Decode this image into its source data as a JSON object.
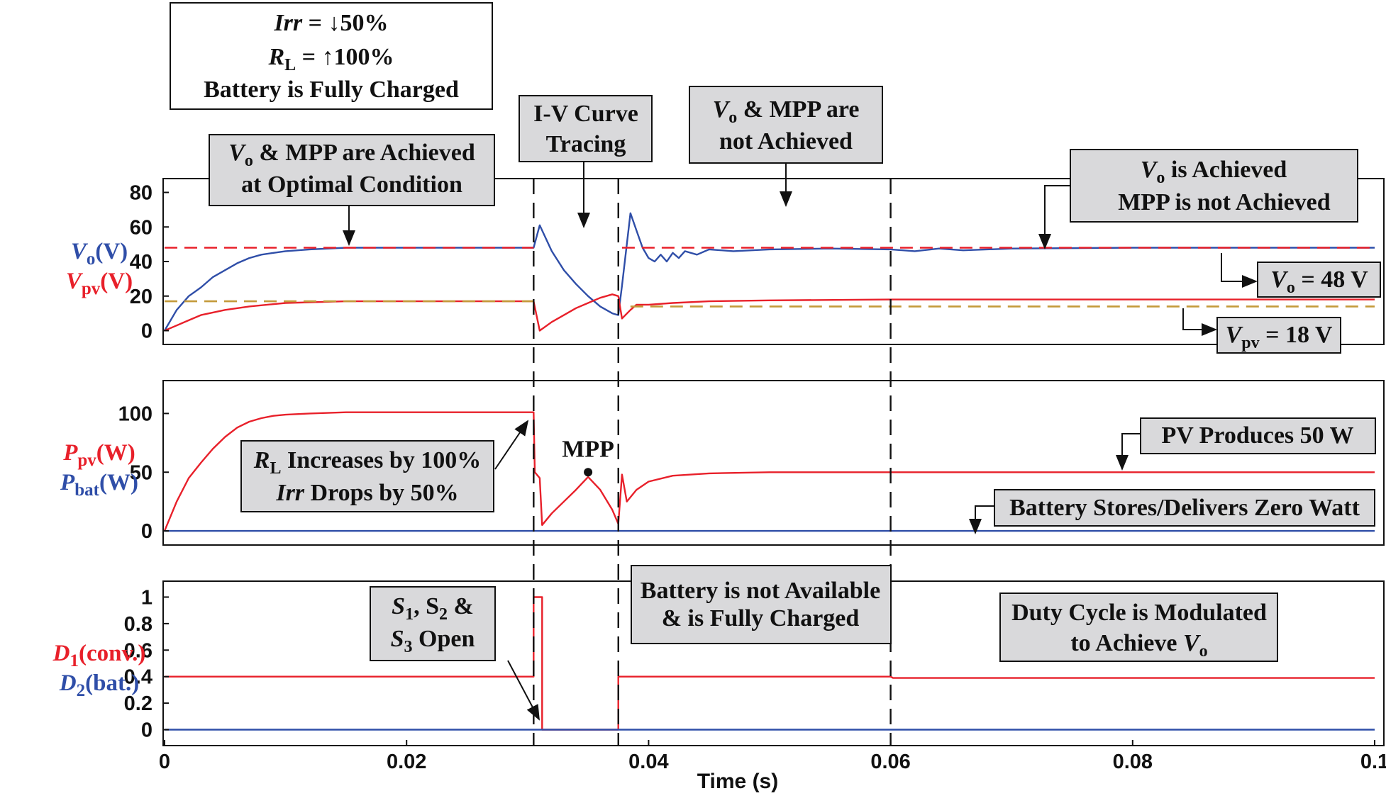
{
  "colors": {
    "red": "#e8202a",
    "blue": "#2f4ea8",
    "gold": "#c49a3a",
    "box_fill": "#d9d9db",
    "axis": "#111111"
  },
  "chart_data": [
    {
      "type": "line",
      "panel": "top",
      "ylabels": [
        {
          "sym": "V",
          "sub": "o",
          "unit": "(V)",
          "color": "blue"
        },
        {
          "sym": "V",
          "sub": "pv",
          "unit": "(V)",
          "color": "red"
        }
      ],
      "xlim": [
        0,
        0.1
      ],
      "ylim": [
        -8,
        88
      ],
      "yticks": [
        0,
        20,
        40,
        60,
        80
      ],
      "series": [
        {
          "color": "blue",
          "dash": false,
          "points": [
            [
              0,
              0
            ],
            [
              0.001,
              12
            ],
            [
              0.002,
              20
            ],
            [
              0.003,
              25
            ],
            [
              0.004,
              31
            ],
            [
              0.005,
              35
            ],
            [
              0.006,
              39
            ],
            [
              0.007,
              42
            ],
            [
              0.008,
              44
            ],
            [
              0.009,
              45
            ],
            [
              0.01,
              46
            ],
            [
              0.012,
              47
            ],
            [
              0.015,
              48
            ],
            [
              0.0305,
              48
            ],
            [
              0.031,
              61
            ],
            [
              0.032,
              46
            ],
            [
              0.033,
              35
            ],
            [
              0.034,
              27
            ],
            [
              0.035,
              20
            ],
            [
              0.036,
              14
            ],
            [
              0.037,
              10
            ],
            [
              0.0375,
              9
            ],
            [
              0.0378,
              26
            ],
            [
              0.0385,
              68
            ],
            [
              0.039,
              58
            ],
            [
              0.0395,
              48
            ],
            [
              0.04,
              42
            ],
            [
              0.0405,
              40
            ],
            [
              0.041,
              44
            ],
            [
              0.0415,
              40
            ],
            [
              0.042,
              45
            ],
            [
              0.0425,
              42
            ],
            [
              0.043,
              46
            ],
            [
              0.044,
              44
            ],
            [
              0.045,
              47
            ],
            [
              0.047,
              46
            ],
            [
              0.05,
              47
            ],
            [
              0.055,
              47.5
            ],
            [
              0.06,
              47
            ],
            [
              0.062,
              46
            ],
            [
              0.064,
              47.5
            ],
            [
              0.066,
              46.5
            ],
            [
              0.07,
              47.5
            ],
            [
              0.08,
              48
            ],
            [
              0.1,
              48
            ]
          ]
        },
        {
          "color": "red",
          "dash": false,
          "points": [
            [
              0,
              0
            ],
            [
              0.001,
              3
            ],
            [
              0.002,
              6
            ],
            [
              0.003,
              9
            ],
            [
              0.005,
              12
            ],
            [
              0.007,
              14
            ],
            [
              0.01,
              16
            ],
            [
              0.015,
              17
            ],
            [
              0.0305,
              17
            ],
            [
              0.031,
              0
            ],
            [
              0.032,
              5
            ],
            [
              0.033,
              9
            ],
            [
              0.034,
              13
            ],
            [
              0.035,
              16
            ],
            [
              0.036,
              19
            ],
            [
              0.037,
              21
            ],
            [
              0.0375,
              20
            ],
            [
              0.0378,
              7
            ],
            [
              0.0385,
              12
            ],
            [
              0.039,
              15
            ],
            [
              0.04,
              15
            ],
            [
              0.042,
              16
            ],
            [
              0.045,
              17
            ],
            [
              0.05,
              17.5
            ],
            [
              0.06,
              18
            ],
            [
              0.1,
              18
            ]
          ]
        },
        {
          "color": "red",
          "dash": true,
          "points": [
            [
              0,
              48
            ],
            [
              0.0305,
              48
            ],
            [
              0.0305,
              null
            ],
            [
              0.0378,
              48
            ],
            [
              0.1,
              48
            ]
          ]
        },
        {
          "color": "gold",
          "dash": true,
          "points": [
            [
              0,
              17
            ],
            [
              0.0305,
              17
            ],
            [
              0.0305,
              null
            ],
            [
              0.0385,
              14
            ],
            [
              0.1,
              14
            ]
          ]
        }
      ]
    },
    {
      "type": "line",
      "panel": "middle",
      "ylabels": [
        {
          "sym": "P",
          "sub": "pv",
          "unit": "(W)",
          "color": "red"
        },
        {
          "sym": "P",
          "sub": "bat",
          "unit": "(W)",
          "color": "blue"
        }
      ],
      "xlim": [
        0,
        0.1
      ],
      "ylim": [
        -12,
        128
      ],
      "yticks": [
        0,
        50,
        100
      ],
      "series": [
        {
          "color": "red",
          "dash": false,
          "points": [
            [
              0,
              0
            ],
            [
              0.001,
              25
            ],
            [
              0.002,
              45
            ],
            [
              0.003,
              58
            ],
            [
              0.004,
              70
            ],
            [
              0.005,
              80
            ],
            [
              0.006,
              88
            ],
            [
              0.007,
              93
            ],
            [
              0.008,
              96
            ],
            [
              0.009,
              98
            ],
            [
              0.01,
              99
            ],
            [
              0.012,
              100
            ],
            [
              0.015,
              101
            ],
            [
              0.03,
              101
            ],
            [
              0.0305,
              101
            ],
            [
              0.0306,
              50
            ],
            [
              0.031,
              45
            ],
            [
              0.0312,
              5
            ],
            [
              0.032,
              15
            ],
            [
              0.033,
              25
            ],
            [
              0.034,
              35
            ],
            [
              0.035,
              46
            ],
            [
              0.036,
              35
            ],
            [
              0.037,
              18
            ],
            [
              0.0375,
              6
            ],
            [
              0.0378,
              48
            ],
            [
              0.0382,
              25
            ],
            [
              0.039,
              35
            ],
            [
              0.04,
              42
            ],
            [
              0.042,
              47
            ],
            [
              0.045,
              49
            ],
            [
              0.05,
              50
            ],
            [
              0.1,
              50
            ]
          ]
        },
        {
          "color": "blue",
          "dash": false,
          "points": [
            [
              0,
              0
            ],
            [
              0.1,
              0
            ]
          ]
        }
      ],
      "annotations": [
        {
          "text": "MPP",
          "x": 0.035,
          "y": 50
        }
      ]
    },
    {
      "type": "line",
      "panel": "bottom",
      "ylabels": [
        {
          "sym": "D",
          "sub": "1",
          "unit": "(conv.)",
          "color": "red"
        },
        {
          "sym": "D",
          "sub": "2",
          "unit": "(bat.)",
          "color": "blue"
        }
      ],
      "xlim": [
        0,
        0.1
      ],
      "xticks": [
        0,
        0.02,
        0.04,
        0.06,
        0.08,
        0.1
      ],
      "xticklabels": [
        "0",
        "0.02",
        "0.04",
        "0.06",
        "0.08",
        "0.1"
      ],
      "xlabel": "Time (s)",
      "ylim": [
        -0.12,
        1.12
      ],
      "yticks": [
        0,
        0.2,
        0.4,
        0.6,
        0.8,
        1
      ],
      "yticklabels": [
        "0",
        "0.2",
        "0.4",
        "0.6",
        "0.8",
        "1"
      ],
      "series": [
        {
          "color": "red",
          "dash": false,
          "points": [
            [
              0,
              0.4
            ],
            [
              0.0305,
              0.4
            ],
            [
              0.0305,
              1
            ],
            [
              0.0312,
              1
            ],
            [
              0.0312,
              0
            ],
            [
              0.0375,
              0
            ],
            [
              0.0375,
              0.4
            ],
            [
              0.06,
              0.4
            ],
            [
              0.0602,
              0.39
            ],
            [
              0.1,
              0.39
            ]
          ]
        },
        {
          "color": "blue",
          "dash": false,
          "points": [
            [
              0,
              0
            ],
            [
              0.1,
              0
            ]
          ]
        }
      ]
    }
  ],
  "vlines_x": [
    0.0305,
    0.0375,
    0.06
  ],
  "labels": {
    "cond1": "Irr",
    "cond1b": " = ↓50%",
    "cond2": "R",
    "cond2sub": "L",
    "cond2b": " = ↑100%",
    "cond3": "Battery is Fully Charged",
    "box_a1_sym": "V",
    "box_a1_sub": "o",
    "box_a1_rest": " & MPP are Achieved",
    "box_a2": "at Optimal Condition",
    "box_b1": "I-V Curve",
    "box_b2": "Tracing",
    "box_c1_sym": "V",
    "box_c1_sub": "o",
    "box_c1_rest": " & MPP are",
    "box_c2": "not Achieved",
    "box_d1_sym": "V",
    "box_d1_sub": "o",
    "box_d1_rest": " is Achieved",
    "box_d2": "MPP is not Achieved",
    "box_vo_sym": "V",
    "box_vo_sub": "o",
    "box_vo_rest": " = 48 V",
    "box_vpv_sym": "V",
    "box_vpv_sub": "pv",
    "box_vpv_rest": " = 18 V",
    "box_rl1_sym": "R",
    "box_rl1_sub": "L",
    "box_rl1_rest": " Increases by 100%",
    "box_rl2_sym": "Irr",
    "box_rl2_rest": " Drops by 50%",
    "box_pv": "PV Produces 50 W",
    "box_bat": "Battery Stores/Delivers Zero Watt",
    "box_s1_a": "S",
    "box_s1_a_sub": "1",
    "box_s1_b": ", S",
    "box_s1_b_sub": "2",
    "box_s1_c": " &",
    "box_s2_a": "S",
    "box_s2_a_sub": "3",
    "box_s2_b": " Open",
    "box_batna1": "Battery is not Available",
    "box_batna2": "& is Fully Charged",
    "box_duty1": "Duty Cycle is Modulated",
    "box_duty2_rest": "to Achieve ",
    "box_duty2_sym": "V",
    "box_duty2_sub": "o"
  }
}
